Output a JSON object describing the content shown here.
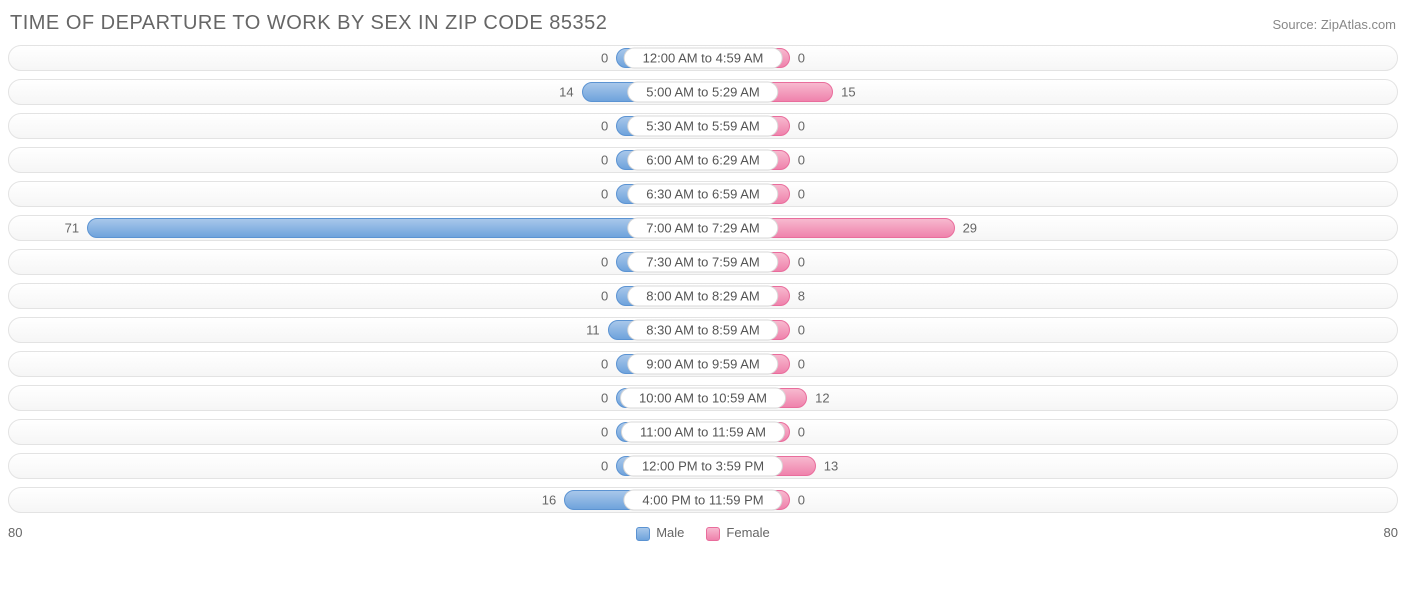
{
  "title": "TIME OF DEPARTURE TO WORK BY SEX IN ZIP CODE 85352",
  "source": "Source: ZipAtlas.com",
  "chart": {
    "type": "diverging-bar",
    "axis_max": 80,
    "min_bar_units": 10,
    "colors": {
      "male_top": "#a8c7ea",
      "male_bottom": "#6fa3dc",
      "male_border": "#5b93d2",
      "female_top": "#f7b9cf",
      "female_bottom": "#ef82ac",
      "female_border": "#e96d9c",
      "track_border": "#e3e3e3",
      "track_bg_top": "#ffffff",
      "track_bg_bottom": "#f6f6f6",
      "text": "#666666",
      "title_text": "#666666",
      "label_bg": "#ffffff",
      "label_border": "#d9d9d9"
    },
    "rows": [
      {
        "label": "12:00 AM to 4:59 AM",
        "male": 0,
        "female": 0
      },
      {
        "label": "5:00 AM to 5:29 AM",
        "male": 14,
        "female": 15
      },
      {
        "label": "5:30 AM to 5:59 AM",
        "male": 0,
        "female": 0
      },
      {
        "label": "6:00 AM to 6:29 AM",
        "male": 0,
        "female": 0
      },
      {
        "label": "6:30 AM to 6:59 AM",
        "male": 0,
        "female": 0
      },
      {
        "label": "7:00 AM to 7:29 AM",
        "male": 71,
        "female": 29
      },
      {
        "label": "7:30 AM to 7:59 AM",
        "male": 0,
        "female": 0
      },
      {
        "label": "8:00 AM to 8:29 AM",
        "male": 0,
        "female": 8
      },
      {
        "label": "8:30 AM to 8:59 AM",
        "male": 11,
        "female": 0
      },
      {
        "label": "9:00 AM to 9:59 AM",
        "male": 0,
        "female": 0
      },
      {
        "label": "10:00 AM to 10:59 AM",
        "male": 0,
        "female": 12
      },
      {
        "label": "11:00 AM to 11:59 AM",
        "male": 0,
        "female": 0
      },
      {
        "label": "12:00 PM to 3:59 PM",
        "male": 0,
        "female": 13
      },
      {
        "label": "4:00 PM to 11:59 PM",
        "male": 16,
        "female": 0
      }
    ],
    "legend": {
      "male": "Male",
      "female": "Female"
    },
    "axis_label_left": "80",
    "axis_label_right": "80"
  }
}
